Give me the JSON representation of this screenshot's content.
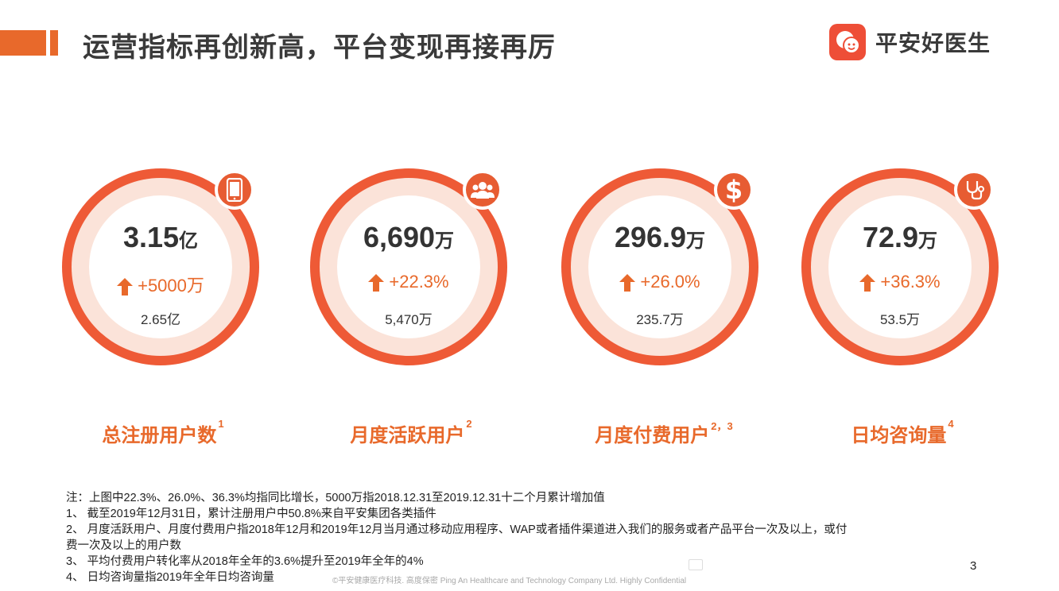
{
  "header": {
    "title": "运营指标再创新高，平台变现再接再厉",
    "logo_text": "平安好医生",
    "accent_color": "#E8692B"
  },
  "metrics": [
    {
      "value": "3.15",
      "unit": "亿",
      "change": "+5000万",
      "previous": "2.65亿",
      "label": "总注册用户数",
      "sup": "1",
      "icon": "tablet-icon"
    },
    {
      "value": "6,690",
      "unit": "万",
      "change": "+22.3%",
      "previous": "5,470万",
      "label": "月度活跃用户",
      "sup": "2",
      "icon": "users-icon"
    },
    {
      "value": "296.9",
      "unit": "万",
      "change": "+26.0%",
      "previous": "235.7万",
      "label": "月度付费用户",
      "sup": "2，3",
      "icon": "dollar-icon"
    },
    {
      "value": "72.9",
      "unit": "万",
      "change": "+36.3%",
      "previous": "53.5万",
      "label": "日均咨询量",
      "sup": "4",
      "icon": "stethoscope-icon"
    }
  ],
  "notes": [
    "注：上图中22.3%、26.0%、36.3%均指同比增长，5000万指2018.12.31至2019.12.31十二个月累计增加值",
    "1、  截至2019年12月31日，累计注册用户中50.8%来自平安集团各类插件",
    "2、  月度活跃用户、月度付费用户指2018年12月和2019年12月当月通过移动应用程序、WAP或者插件渠道进入我们的服务或者产品平台一次及以上，或付",
    "费一次及以上的用户数",
    "3、  平均付费用户转化率从2018年全年的3.6%提升至2019年全年的4%",
    "4、  日均咨询量指2019年全年日均咨询量"
  ],
  "footer": "©平安健康医疗科技. 高度保密 Ping An Healthcare and Technology Company Ltd. Highly Confidential",
  "page_number": "3"
}
